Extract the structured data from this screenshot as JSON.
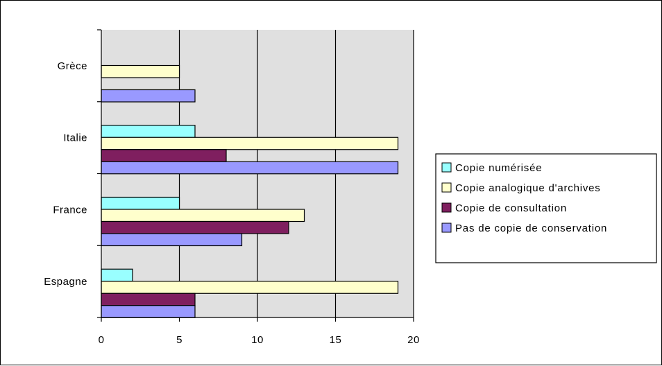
{
  "chart_data": {
    "type": "bar",
    "orientation": "horizontal",
    "categories": [
      "Grèce",
      "Italie",
      "France",
      "Espagne"
    ],
    "series": [
      {
        "name": "Copie numérisée",
        "color": "#99FFFF",
        "values": [
          null,
          6,
          5,
          2
        ]
      },
      {
        "name": "Copie analogique d'archives",
        "color": "#FFFFCC",
        "values": [
          5,
          19,
          13,
          19
        ]
      },
      {
        "name": "Copie de consultation",
        "color": "#7F1F5F",
        "values": [
          null,
          8,
          12,
          6
        ]
      },
      {
        "name": "Pas de copie de conservation",
        "color": "#9999FF",
        "values": [
          6,
          19,
          9,
          6
        ]
      }
    ],
    "xlim": [
      0,
      20
    ],
    "x_ticks": [
      "0",
      "5",
      "10",
      "15",
      "20"
    ],
    "grid": true,
    "plot_background": "#E0E0E0",
    "legend_position": "right"
  }
}
